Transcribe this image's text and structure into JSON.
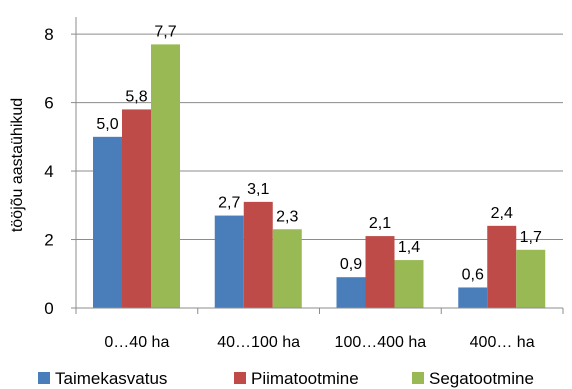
{
  "chart_data": {
    "type": "bar",
    "categories": [
      "0…40 ha",
      "40…100 ha",
      "100…400 ha",
      "400… ha"
    ],
    "series": [
      {
        "name": "Taimekasvatus",
        "values": [
          5.0,
          2.7,
          0.9,
          0.6
        ],
        "labels": [
          "5,0",
          "2,7",
          "0,9",
          "0,6"
        ],
        "color": "#4a7ebb"
      },
      {
        "name": "Piimatootmine",
        "values": [
          5.8,
          3.1,
          2.1,
          2.4
        ],
        "labels": [
          "5,8",
          "3,1",
          "2,1",
          "2,4"
        ],
        "color": "#be4b48"
      },
      {
        "name": "Segatootmine",
        "values": [
          7.7,
          2.3,
          1.4,
          1.7
        ],
        "labels": [
          "7,7",
          "2,3",
          "1,4",
          "1,7"
        ],
        "color": "#98b954"
      }
    ],
    "yticks": [
      0,
      2,
      4,
      6,
      8
    ],
    "ylim": [
      0,
      8.5
    ],
    "ylabel": "tööjõu aastaühikud",
    "xlabel": "",
    "title": "",
    "grid": true,
    "legend_position": "bottom"
  }
}
